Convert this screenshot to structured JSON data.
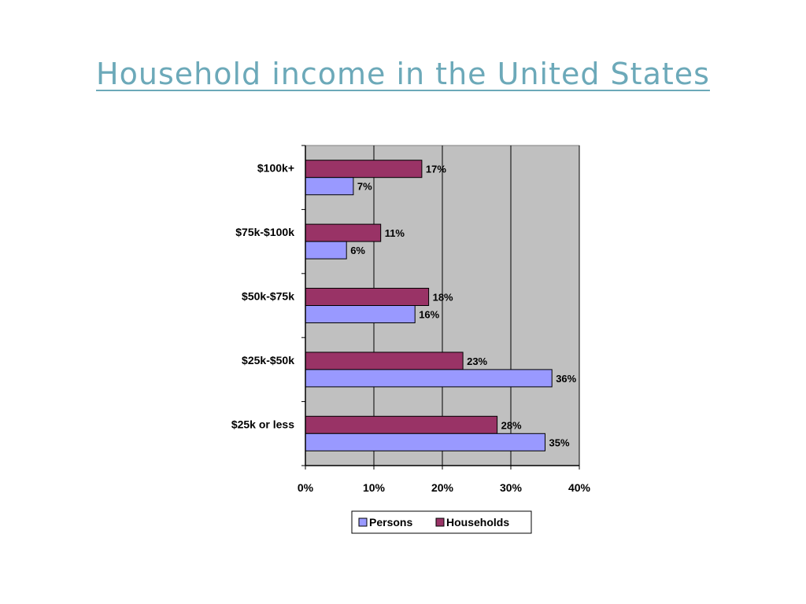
{
  "slide": {
    "title": "Household income in the United States"
  },
  "colors": {
    "title": "#6ca9b9",
    "plot_background": "#c0c0c0",
    "gridline": "#000000",
    "persons": "#9999ff",
    "households": "#993366"
  },
  "chart_data": {
    "type": "bar",
    "orientation": "horizontal",
    "categories": [
      "$100k+",
      "$75k-$100k",
      "$50k-$75k",
      "$25k-$50k",
      "$25k or less"
    ],
    "series": [
      {
        "name": "Households",
        "values": [
          17,
          11,
          18,
          23,
          28
        ],
        "labels": [
          "17%",
          "11%",
          "18%",
          "23%",
          "28%"
        ]
      },
      {
        "name": "Persons",
        "values": [
          7,
          6,
          16,
          36,
          35
        ],
        "labels": [
          "7%",
          "6%",
          "16%",
          "36%",
          "35%"
        ]
      }
    ],
    "x_ticks": [
      "0%",
      "10%",
      "20%",
      "30%",
      "40%"
    ],
    "xlim": [
      0,
      40
    ],
    "grid": true,
    "legend": {
      "position": "bottom",
      "entries": [
        "Persons",
        "Households"
      ]
    }
  }
}
